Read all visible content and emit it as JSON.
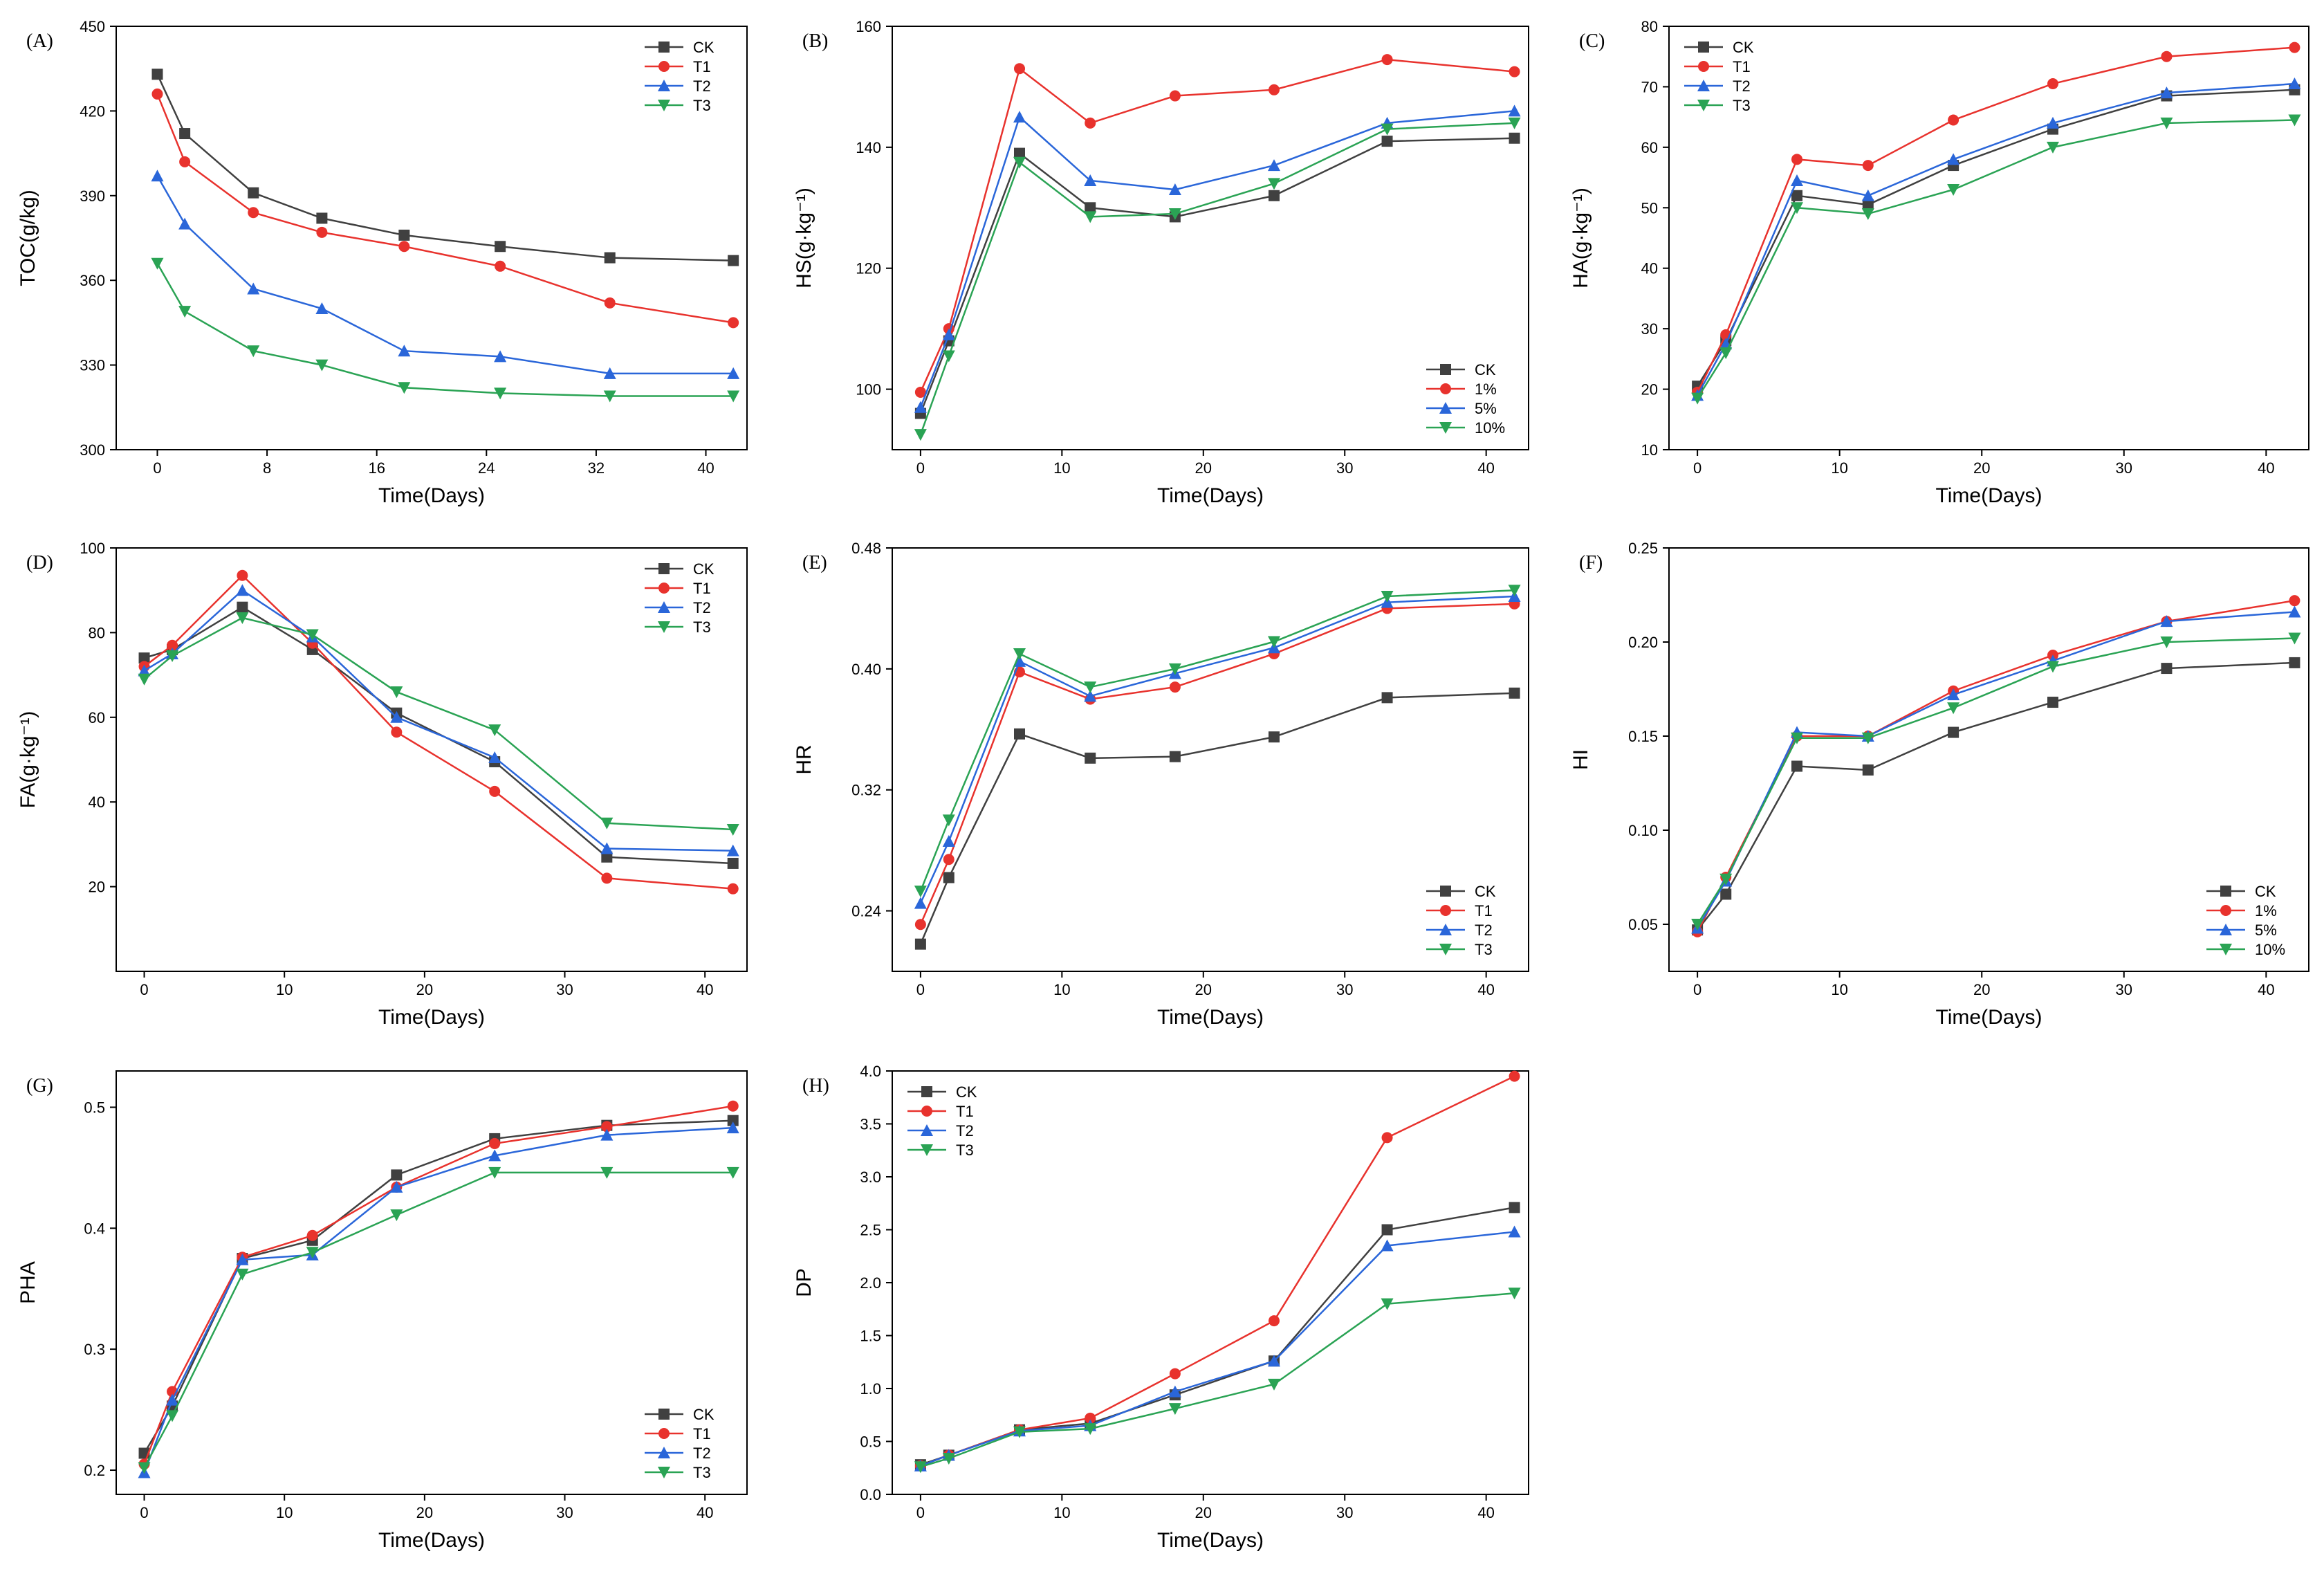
{
  "figure": {
    "colors": {
      "CK": "#404040",
      "T1": "#e8322d",
      "T2": "#2a66d9",
      "T3": "#2aa354"
    },
    "markers": {
      "CK": "square",
      "T1": "circle",
      "T2": "triangle-up",
      "T3": "triangle-down"
    }
  },
  "chart_data": [
    {
      "id": "A",
      "label": "(A)",
      "type": "line",
      "xlabel": "Time(Days)",
      "ylabel": "TOC(g/kg)",
      "xlim": [
        -3,
        43
      ],
      "ylim": [
        300,
        450
      ],
      "xticks": [
        0,
        8,
        16,
        24,
        32,
        40
      ],
      "yticks": [
        300,
        330,
        360,
        390,
        420,
        450
      ],
      "x": [
        0,
        2,
        7,
        12,
        18,
        25,
        33,
        42
      ],
      "series": [
        {
          "name": "CK",
          "values": [
            433,
            412,
            391,
            382,
            376,
            372,
            368,
            367
          ]
        },
        {
          "name": "T1",
          "values": [
            426,
            402,
            384,
            377,
            372,
            365,
            352,
            345
          ]
        },
        {
          "name": "T2",
          "values": [
            397,
            380,
            357,
            350,
            335,
            333,
            327,
            327
          ]
        },
        {
          "name": "T3",
          "values": [
            366,
            349,
            335,
            330,
            322,
            320,
            319,
            319
          ]
        }
      ],
      "legend": {
        "labels": [
          "CK",
          "T1",
          "T2",
          "T3"
        ],
        "loc": "top-right"
      }
    },
    {
      "id": "B",
      "label": "(B)",
      "type": "line",
      "xlabel": "Time(Days)",
      "ylabel": "HS(g·kg⁻¹)",
      "xlim": [
        -2,
        43
      ],
      "ylim": [
        90,
        160
      ],
      "xticks": [
        0,
        10,
        20,
        30,
        40
      ],
      "yticks": [
        100,
        120,
        140,
        160
      ],
      "x": [
        0,
        2,
        7,
        12,
        18,
        25,
        33,
        42
      ],
      "series": [
        {
          "name": "CK",
          "values": [
            96,
            108,
            139,
            130,
            128.5,
            132,
            141,
            141.5
          ]
        },
        {
          "name": "T1",
          "values": [
            99.5,
            110,
            153,
            144,
            148.5,
            149.5,
            154.5,
            152.5
          ]
        },
        {
          "name": "T2",
          "values": [
            97,
            109,
            145,
            134.5,
            133,
            137,
            144,
            146
          ]
        },
        {
          "name": "T3",
          "values": [
            92.5,
            105.5,
            137.5,
            128.5,
            129,
            134,
            143,
            144
          ]
        }
      ],
      "legend": {
        "labels": [
          "CK",
          "1%",
          "5%",
          "10%"
        ],
        "loc": "bottom-right"
      }
    },
    {
      "id": "C",
      "label": "(C)",
      "type": "line",
      "xlabel": "Time(Days)",
      "ylabel": "HA(g·kg⁻¹)",
      "xlim": [
        -2,
        43
      ],
      "ylim": [
        10,
        80
      ],
      "xticks": [
        0,
        10,
        20,
        30,
        40
      ],
      "yticks": [
        10,
        20,
        30,
        40,
        50,
        60,
        70,
        80
      ],
      "x": [
        0,
        2,
        7,
        12,
        18,
        25,
        33,
        42
      ],
      "series": [
        {
          "name": "CK",
          "values": [
            20.5,
            28,
            52,
            50.5,
            57,
            63,
            68.5,
            69.5
          ]
        },
        {
          "name": "T1",
          "values": [
            19.5,
            29,
            58,
            57,
            64.5,
            70.5,
            75,
            76.5
          ]
        },
        {
          "name": "T2",
          "values": [
            19,
            27.5,
            54.5,
            52,
            58,
            64,
            69,
            70.5
          ]
        },
        {
          "name": "T3",
          "values": [
            18.5,
            26,
            50,
            49,
            53,
            60,
            64,
            64.5
          ]
        }
      ],
      "legend": {
        "labels": [
          "CK",
          "T1",
          "T2",
          "T3"
        ],
        "loc": "top-left"
      }
    },
    {
      "id": "D",
      "label": "(D)",
      "type": "line",
      "xlabel": "Time(Days)",
      "ylabel": "FA(g·kg⁻¹)",
      "xlim": [
        -2,
        43
      ],
      "ylim": [
        0,
        100
      ],
      "xticks": [
        0,
        10,
        20,
        30,
        40
      ],
      "yticks": [
        20,
        40,
        60,
        80,
        100
      ],
      "x": [
        0,
        2,
        7,
        12,
        18,
        25,
        33,
        42
      ],
      "series": [
        {
          "name": "CK",
          "values": [
            74,
            76,
            86,
            76,
            61,
            49.5,
            27,
            25.5
          ]
        },
        {
          "name": "T1",
          "values": [
            72,
            77,
            93.5,
            77.5,
            56.5,
            42.5,
            22,
            19.5
          ]
        },
        {
          "name": "T2",
          "values": [
            71,
            75,
            90,
            79,
            60,
            50.5,
            29,
            28.5
          ]
        },
        {
          "name": "T3",
          "values": [
            69,
            74.5,
            83.5,
            79.5,
            66,
            57,
            35,
            33.5
          ]
        }
      ],
      "legend": {
        "labels": [
          "CK",
          "T1",
          "T2",
          "T3"
        ],
        "loc": "top-right"
      }
    },
    {
      "id": "E",
      "label": "(E)",
      "type": "line",
      "xlabel": "Time(Days)",
      "ylabel": "HR",
      "xlim": [
        -2,
        43
      ],
      "ylim": [
        0.2,
        0.48
      ],
      "xticks": [
        0,
        10,
        20,
        30,
        40
      ],
      "yticks": [
        0.24,
        0.32,
        0.4,
        0.48
      ],
      "ytick_labels": [
        "0.24",
        "0.32",
        "0.40",
        "0.48"
      ],
      "x": [
        0,
        2,
        7,
        12,
        18,
        25,
        33,
        42
      ],
      "series": [
        {
          "name": "CK",
          "values": [
            0.218,
            0.262,
            0.357,
            0.341,
            0.342,
            0.355,
            0.381,
            0.384
          ]
        },
        {
          "name": "T1",
          "values": [
            0.231,
            0.274,
            0.398,
            0.38,
            0.388,
            0.41,
            0.44,
            0.443
          ]
        },
        {
          "name": "T2",
          "values": [
            0.245,
            0.286,
            0.405,
            0.382,
            0.397,
            0.414,
            0.444,
            0.448
          ]
        },
        {
          "name": "T3",
          "values": [
            0.253,
            0.3,
            0.41,
            0.388,
            0.4,
            0.418,
            0.448,
            0.452
          ]
        }
      ],
      "legend": {
        "labels": [
          "CK",
          "T1",
          "T2",
          "T3"
        ],
        "loc": "bottom-right"
      }
    },
    {
      "id": "F",
      "label": "(F)",
      "type": "line",
      "xlabel": "Time(Days)",
      "ylabel": "HI",
      "xlim": [
        -2,
        43
      ],
      "ylim": [
        0.025,
        0.25
      ],
      "xticks": [
        0,
        10,
        20,
        30,
        40
      ],
      "yticks": [
        0.05,
        0.1,
        0.15,
        0.2,
        0.25
      ],
      "ytick_labels": [
        "0.05",
        "0.10",
        "0.15",
        "0.20",
        "0.25"
      ],
      "x": [
        0,
        2,
        7,
        12,
        18,
        25,
        33,
        42
      ],
      "series": [
        {
          "name": "CK",
          "values": [
            0.047,
            0.066,
            0.134,
            0.132,
            0.152,
            0.168,
            0.186,
            0.189
          ]
        },
        {
          "name": "T1",
          "values": [
            0.046,
            0.075,
            0.15,
            0.15,
            0.174,
            0.193,
            0.211,
            0.222
          ]
        },
        {
          "name": "T2",
          "values": [
            0.048,
            0.073,
            0.152,
            0.15,
            0.172,
            0.19,
            0.211,
            0.216
          ]
        },
        {
          "name": "T3",
          "values": [
            0.05,
            0.074,
            0.149,
            0.149,
            0.165,
            0.187,
            0.2,
            0.202
          ]
        }
      ],
      "legend": {
        "labels": [
          "CK",
          "1%",
          "5%",
          "10%"
        ],
        "loc": "bottom-right"
      }
    },
    {
      "id": "G",
      "label": "(G)",
      "type": "line",
      "xlabel": "Time(Days)",
      "ylabel": "PHA",
      "xlim": [
        -2,
        43
      ],
      "ylim": [
        0.18,
        0.53
      ],
      "xticks": [
        0,
        10,
        20,
        30,
        40
      ],
      "yticks": [
        0.2,
        0.3,
        0.4,
        0.5
      ],
      "ytick_labels": [
        "0.2",
        "0.3",
        "0.4",
        "0.5"
      ],
      "x": [
        0,
        2,
        7,
        12,
        18,
        25,
        33,
        42
      ],
      "series": [
        {
          "name": "CK",
          "values": [
            0.214,
            0.253,
            0.375,
            0.39,
            0.444,
            0.474,
            0.485,
            0.489
          ]
        },
        {
          "name": "T1",
          "values": [
            0.205,
            0.265,
            0.376,
            0.394,
            0.434,
            0.47,
            0.484,
            0.501
          ]
        },
        {
          "name": "T2",
          "values": [
            0.198,
            0.258,
            0.374,
            0.378,
            0.434,
            0.46,
            0.477,
            0.483
          ]
        },
        {
          "name": "T3",
          "values": [
            0.202,
            0.245,
            0.362,
            0.38,
            0.411,
            0.446,
            0.446,
            0.446
          ]
        }
      ],
      "legend": {
        "labels": [
          "CK",
          "T1",
          "T2",
          "T3"
        ],
        "loc": "bottom-right"
      }
    },
    {
      "id": "H",
      "label": "(H)",
      "type": "line",
      "xlabel": "Time(Days)",
      "ylabel": "DP",
      "xlim": [
        -2,
        43
      ],
      "ylim": [
        0,
        4
      ],
      "xticks": [
        0,
        10,
        20,
        30,
        40
      ],
      "yticks": [
        0,
        0.5,
        1,
        1.5,
        2,
        2.5,
        3,
        3.5,
        4
      ],
      "ytick_labels": [
        "0.0",
        "0.5",
        "1.0",
        "1.5",
        "2.0",
        "2.5",
        "3.0",
        "3.5",
        "4.0"
      ],
      "x": [
        0,
        2,
        7,
        12,
        18,
        25,
        33,
        42
      ],
      "series": [
        {
          "name": "CK",
          "values": [
            0.28,
            0.37,
            0.61,
            0.67,
            0.94,
            1.26,
            2.5,
            2.71
          ]
        },
        {
          "name": "T1",
          "values": [
            0.27,
            0.37,
            0.61,
            0.72,
            1.14,
            1.64,
            3.37,
            3.95
          ]
        },
        {
          "name": "T2",
          "values": [
            0.27,
            0.37,
            0.6,
            0.65,
            0.97,
            1.26,
            2.35,
            2.48
          ]
        },
        {
          "name": "T3",
          "values": [
            0.26,
            0.34,
            0.59,
            0.62,
            0.81,
            1.04,
            1.8,
            1.9
          ]
        }
      ],
      "legend": {
        "labels": [
          "CK",
          "T1",
          "T2",
          "T3"
        ],
        "loc": "top-left"
      }
    }
  ]
}
